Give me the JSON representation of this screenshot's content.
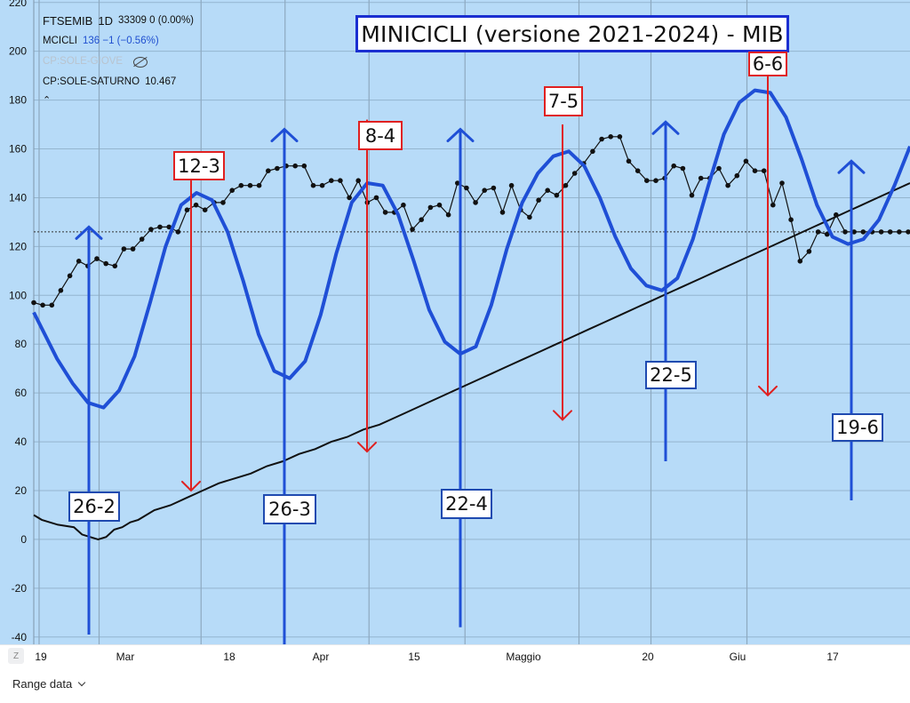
{
  "legend": {
    "symbol": "FTSEMIB",
    "interval": "1D",
    "values": "33309 0 (0.00%)",
    "indicator_name": "MCICLI",
    "indicator_values": "136 −1 (−0.56%)",
    "hidden_series": "CP:SOLE-GIOVE",
    "series2_name": "CP:SOLE-SATURNO",
    "series2_value": "10.467",
    "collapse_glyph": "⌃"
  },
  "title": "MINICICLI (versione 2021-2024) - MIB",
  "footer": {
    "z_button": "Z",
    "range_label": "Range data"
  },
  "colors": {
    "background": "#b7dbf8",
    "cycle": "#1f4fd6",
    "top_arrow": "#e02020",
    "bottom_arrow": "#1f4fd6",
    "price": "#111111",
    "trend": "#111111"
  },
  "chart_data": {
    "type": "line",
    "title": "MINICICLI (versione 2021-2024) - MIB",
    "ylim": [
      -43,
      221
    ],
    "yticks": [
      -40,
      -20,
      0,
      20,
      40,
      60,
      80,
      100,
      120,
      140,
      160,
      180,
      200,
      220
    ],
    "reference_level": 126,
    "x_tick_labels": [
      {
        "label": "19",
        "day": 0
      },
      {
        "label": "Mar",
        "day": 10
      },
      {
        "label": "18",
        "day": 27
      },
      {
        "label": "Apr",
        "day": 41
      },
      {
        "label": "15",
        "day": 55
      },
      {
        "label": "Maggio",
        "day": 71
      },
      {
        "label": "20",
        "day": 90
      },
      {
        "label": "Giu",
        "day": 102
      },
      {
        "label": "17",
        "day": 118
      }
    ],
    "series": [
      {
        "name": "MCICLI cycle",
        "style": "thick-blue",
        "points": [
          [
            -1,
            93
          ],
          [
            2,
            74
          ],
          [
            4,
            64
          ],
          [
            6,
            56
          ],
          [
            8,
            54
          ],
          [
            10,
            61
          ],
          [
            12,
            75
          ],
          [
            14,
            97
          ],
          [
            16,
            120
          ],
          [
            18,
            137
          ],
          [
            20,
            142
          ],
          [
            22,
            139
          ],
          [
            24,
            126
          ],
          [
            26,
            106
          ],
          [
            28,
            84
          ],
          [
            30,
            69
          ],
          [
            32,
            66
          ],
          [
            34,
            73
          ],
          [
            36,
            92
          ],
          [
            38,
            117
          ],
          [
            40,
            138
          ],
          [
            42,
            146
          ],
          [
            44,
            145
          ],
          [
            46,
            133
          ],
          [
            48,
            114
          ],
          [
            50,
            94
          ],
          [
            52,
            81
          ],
          [
            54,
            76
          ],
          [
            56,
            79
          ],
          [
            58,
            96
          ],
          [
            60,
            119
          ],
          [
            62,
            138
          ],
          [
            64,
            150
          ],
          [
            66,
            157
          ],
          [
            68,
            159
          ],
          [
            70,
            153
          ],
          [
            72,
            140
          ],
          [
            74,
            124
          ],
          [
            76,
            111
          ],
          [
            78,
            104
          ],
          [
            80,
            102
          ],
          [
            82,
            107
          ],
          [
            84,
            123
          ],
          [
            86,
            145
          ],
          [
            88,
            166
          ],
          [
            90,
            179
          ],
          [
            92,
            184
          ],
          [
            94,
            183
          ],
          [
            96,
            173
          ],
          [
            98,
            156
          ],
          [
            100,
            137
          ],
          [
            102,
            124
          ],
          [
            104,
            121
          ],
          [
            106,
            123
          ],
          [
            108,
            131
          ],
          [
            110,
            145
          ],
          [
            112,
            161
          ]
        ]
      },
      {
        "name": "FTSEMIB price",
        "style": "black-dots",
        "points": [
          [
            -1,
            97
          ],
          [
            0,
            96
          ],
          [
            1,
            96
          ],
          [
            2,
            102
          ],
          [
            3,
            108
          ],
          [
            4,
            114
          ],
          [
            5,
            112
          ],
          [
            6,
            115
          ],
          [
            7,
            113
          ],
          [
            8,
            112
          ],
          [
            9,
            119
          ],
          [
            10,
            119
          ],
          [
            11,
            123
          ],
          [
            12,
            127
          ],
          [
            13,
            128
          ],
          [
            14,
            128
          ],
          [
            15,
            126
          ],
          [
            16,
            135
          ],
          [
            17,
            137
          ],
          [
            18,
            135
          ],
          [
            19,
            138
          ],
          [
            20,
            138
          ],
          [
            21,
            143
          ],
          [
            22,
            145
          ],
          [
            23,
            145
          ],
          [
            24,
            145
          ],
          [
            25,
            151
          ],
          [
            26,
            152
          ],
          [
            27,
            153
          ],
          [
            28,
            153
          ],
          [
            29,
            153
          ],
          [
            30,
            145
          ],
          [
            31,
            145
          ],
          [
            32,
            147
          ],
          [
            33,
            147
          ],
          [
            34,
            140
          ],
          [
            35,
            147
          ],
          [
            36,
            138
          ],
          [
            37,
            140
          ],
          [
            38,
            134
          ],
          [
            39,
            134
          ],
          [
            40,
            137
          ],
          [
            41,
            127
          ],
          [
            42,
            131
          ],
          [
            43,
            136
          ],
          [
            44,
            137
          ],
          [
            45,
            133
          ],
          [
            46,
            146
          ],
          [
            47,
            144
          ],
          [
            48,
            138
          ],
          [
            49,
            143
          ],
          [
            50,
            144
          ],
          [
            51,
            134
          ],
          [
            52,
            145
          ],
          [
            53,
            135
          ],
          [
            54,
            132
          ],
          [
            55,
            139
          ],
          [
            56,
            143
          ],
          [
            57,
            141
          ],
          [
            58,
            145
          ],
          [
            59,
            150
          ],
          [
            60,
            154
          ],
          [
            61,
            159
          ],
          [
            62,
            164
          ],
          [
            63,
            165
          ],
          [
            64,
            165
          ],
          [
            65,
            155
          ],
          [
            66,
            151
          ],
          [
            67,
            147
          ],
          [
            68,
            147
          ],
          [
            69,
            148
          ],
          [
            70,
            153
          ],
          [
            71,
            152
          ],
          [
            72,
            141
          ],
          [
            73,
            148
          ],
          [
            74,
            148
          ],
          [
            75,
            152
          ],
          [
            76,
            145
          ],
          [
            77,
            149
          ],
          [
            78,
            155
          ],
          [
            79,
            151
          ],
          [
            80,
            151
          ],
          [
            81,
            137
          ],
          [
            82,
            146
          ],
          [
            83,
            131
          ],
          [
            84,
            114
          ],
          [
            85,
            118
          ],
          [
            86,
            126
          ],
          [
            87,
            125
          ],
          [
            88,
            133
          ],
          [
            89,
            126
          ],
          [
            90,
            126
          ],
          [
            91,
            126
          ],
          [
            92,
            126
          ],
          [
            93,
            126
          ],
          [
            94,
            126
          ],
          [
            95,
            126
          ],
          [
            96,
            126
          ]
        ]
      },
      {
        "name": "CP:SOLE-SATURNO",
        "style": "black-line",
        "points": [
          [
            -1,
            10
          ],
          [
            0,
            8
          ],
          [
            2,
            6
          ],
          [
            4,
            5
          ],
          [
            5,
            2
          ],
          [
            6,
            1
          ],
          [
            7,
            0
          ],
          [
            8,
            1
          ],
          [
            9,
            4
          ],
          [
            10,
            5
          ],
          [
            11,
            7
          ],
          [
            12,
            8
          ],
          [
            13,
            10
          ],
          [
            14,
            12
          ],
          [
            16,
            14
          ],
          [
            18,
            17
          ],
          [
            20,
            20
          ],
          [
            22,
            23
          ],
          [
            24,
            25
          ],
          [
            26,
            27
          ],
          [
            28,
            30
          ],
          [
            30,
            32
          ],
          [
            32,
            35
          ],
          [
            34,
            37
          ],
          [
            36,
            40
          ],
          [
            38,
            42
          ],
          [
            40,
            45
          ],
          [
            42,
            47
          ],
          [
            44,
            50
          ],
          [
            46,
            53
          ],
          [
            48,
            56
          ],
          [
            50,
            59
          ],
          [
            52,
            62
          ],
          [
            54,
            65
          ],
          [
            56,
            68
          ],
          [
            58,
            71
          ],
          [
            60,
            74
          ],
          [
            62,
            77
          ],
          [
            64,
            80
          ],
          [
            66,
            83
          ],
          [
            68,
            86
          ],
          [
            70,
            89
          ],
          [
            72,
            92
          ],
          [
            74,
            95
          ],
          [
            76,
            98
          ],
          [
            78,
            101
          ],
          [
            80,
            104
          ],
          [
            82,
            107
          ],
          [
            84,
            110
          ],
          [
            86,
            113
          ],
          [
            88,
            116
          ],
          [
            90,
            119
          ],
          [
            92,
            122
          ],
          [
            94,
            125
          ],
          [
            96,
            128
          ],
          [
            98,
            131
          ],
          [
            100,
            134
          ],
          [
            102,
            137
          ],
          [
            104,
            140
          ],
          [
            106,
            143
          ],
          [
            108,
            146
          ]
        ]
      }
    ],
    "top_markers": [
      {
        "label": "12-3",
        "day": 15,
        "from": 148,
        "to": 20
      },
      {
        "label": "8-4",
        "day": 33,
        "from": 172,
        "to": 36
      },
      {
        "label": "7-5",
        "day": 54,
        "from": 170,
        "to": 49
      },
      {
        "label": "6-6",
        "day": 75,
        "from": 198,
        "to": 59
      }
    ],
    "bottom_markers": [
      {
        "label": "26-2",
        "day": 5,
        "from": -39,
        "to": 128
      },
      {
        "label": "26-3",
        "day": 25,
        "from": -43,
        "to": 168
      },
      {
        "label": "22-4",
        "day": 45,
        "from": -36,
        "to": 168
      },
      {
        "label": "22-5",
        "day": 65,
        "from": 32,
        "to": 171
      },
      {
        "label": "19-6",
        "day": 84,
        "from": 16,
        "to": 155
      }
    ]
  }
}
